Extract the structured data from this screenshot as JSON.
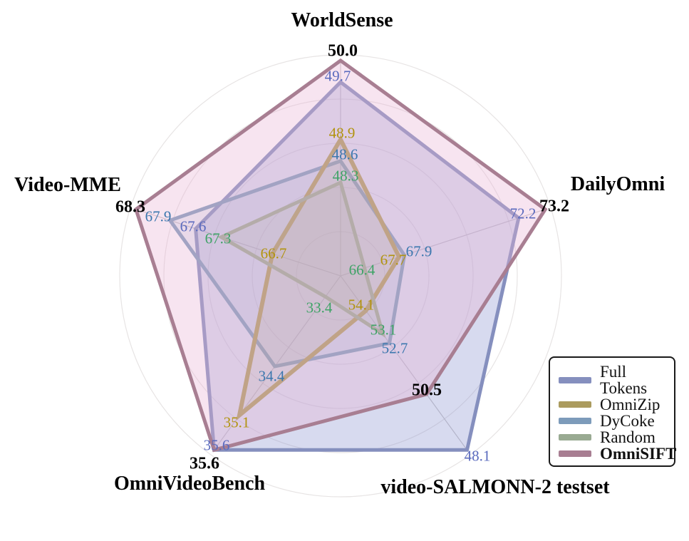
{
  "figure": {
    "background": "#ffffff"
  },
  "chart_data": {
    "type": "radar",
    "title": "",
    "axes": [
      {
        "id": "worldsense",
        "label": "WorldSense",
        "angle_deg": 90,
        "range": [
          47.0,
          50.0
        ],
        "title_pos": [
          480,
          27
        ]
      },
      {
        "id": "dailyomni",
        "label": "DailyOmni",
        "angle_deg": 18,
        "range": [
          65.5,
          73.2
        ],
        "title_pos": [
          867,
          257
        ]
      },
      {
        "id": "video-salmonn2",
        "label": "video-SALMONN-2 testset",
        "angle_deg": -54,
        "range": [
          55.6,
          48.1
        ],
        "title_pos": [
          695,
          682
        ]
      },
      {
        "id": "omnivideobench",
        "label": "OmniVideoBench",
        "angle_deg": -126,
        "range": [
          33.1,
          35.6
        ],
        "title_pos": [
          266,
          677
        ]
      },
      {
        "id": "video-mme",
        "label": "Video-MME",
        "angle_deg": 162,
        "range": [
          65.9,
          68.3
        ],
        "title_pos": [
          95,
          258
        ]
      }
    ],
    "series": [
      {
        "name": "Full Tokens",
        "line_color": "#858fbe",
        "fill_color": "rgba(138,148,208,0.34)",
        "label_color": "#5a6abe",
        "bold": false,
        "line_width": 5,
        "values": [
          49.7,
          72.2,
          48.1,
          35.6,
          67.6
        ],
        "label_pos": [
          [
            474,
            106
          ],
          [
            734,
            299
          ],
          [
            670,
            639
          ],
          [
            304,
            624
          ],
          [
            271,
            317
          ]
        ]
      },
      {
        "name": "OmniZip",
        "line_color": "#ab9b5e",
        "fill_color": "rgba(171,155,94,0.14)",
        "label_color": "#b1930e",
        "bold": false,
        "line_width": 6,
        "values": [
          48.9,
          67.7,
          54.1,
          35.1,
          66.7
        ],
        "label_pos": [
          [
            480,
            186
          ],
          [
            552,
            364
          ],
          [
            507,
            427
          ],
          [
            332,
            592
          ],
          [
            384,
            355
          ]
        ]
      },
      {
        "name": "DyCoke",
        "line_color": "#7d9bba",
        "fill_color": "rgba(125,155,186,0.16)",
        "label_color": "#3b77ae",
        "bold": false,
        "line_width": 5,
        "values": [
          48.6,
          67.9,
          52.7,
          34.4,
          67.9
        ],
        "label_pos": [
          [
            484,
            216
          ],
          [
            588,
            352
          ],
          [
            554,
            488
          ],
          [
            381,
            527
          ],
          [
            222,
            303
          ]
        ]
      },
      {
        "name": "Random",
        "line_color": "#99aa92",
        "fill_color": "rgba(153,170,146,0.16)",
        "label_color": "#3ea366",
        "bold": false,
        "line_width": 5,
        "values": [
          48.3,
          66.4,
          53.1,
          33.4,
          67.3
        ],
        "label_pos": [
          [
            485,
            246
          ],
          [
            508,
            378
          ],
          [
            538,
            462
          ],
          [
            448,
            431
          ],
          [
            306,
            334
          ]
        ]
      },
      {
        "name": "OmniSIFT",
        "line_color": "#a87e92",
        "fill_color": "rgba(232,177,212,0.35)",
        "label_color": "#000000",
        "bold": true,
        "line_width": 5,
        "values": [
          50.0,
          73.2,
          50.5,
          35.6,
          68.3
        ],
        "label_pos": [
          [
            481,
            70
          ],
          [
            778,
            288
          ],
          [
            599,
            546
          ],
          [
            287,
            649
          ],
          [
            183,
            289
          ]
        ]
      }
    ],
    "legend": {
      "entries": [
        "Full Tokens",
        "OmniZip",
        "DyCoke",
        "Random",
        "OmniSIFT"
      ],
      "position": "lower right"
    },
    "layout": {
      "center": [
        478,
        387
      ],
      "radius": 302,
      "ring_radii": [
        62,
        124,
        186,
        248,
        310
      ],
      "ring_color": "#e7e4e4",
      "spoke_color": "#c9c5c5",
      "draw_order": [
        0,
        2,
        1,
        3,
        4
      ],
      "legend_box": [
        770,
        500,
        178,
        155
      ],
      "value_font_size": 21,
      "bold_value_font_size": 24,
      "axis_title_font_size": 28
    }
  }
}
